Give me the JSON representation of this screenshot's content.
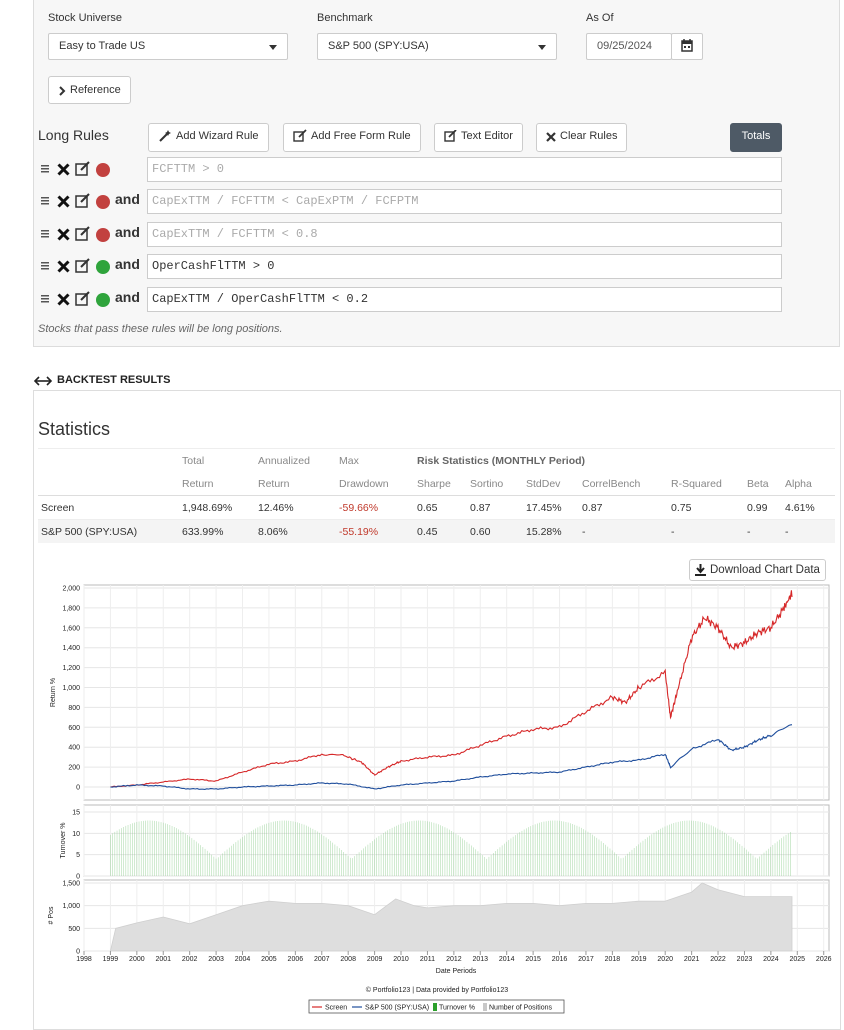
{
  "filters": {
    "universe_label": "Stock Universe",
    "universe_value": "Easy to Trade US",
    "benchmark_label": "Benchmark",
    "benchmark_value": "S&P 500 (SPY:USA)",
    "asof_label": "As Of",
    "asof_value": "09/25/2024"
  },
  "reference_button": "Reference",
  "rules": {
    "title": "Long Rules",
    "buttons": {
      "wizard": "Add Wizard Rule",
      "freeform": "Add Free Form Rule",
      "text_editor": "Text Editor",
      "clear": "Clear Rules",
      "totals": "Totals"
    },
    "connector": "and",
    "items": [
      {
        "expr": "FCFTTM > 0",
        "status": "red",
        "enabled": false
      },
      {
        "expr": "CapExTTM / FCFTTM < CapExPTM / FCFPTM",
        "status": "red",
        "enabled": false
      },
      {
        "expr": "CapExTTM / FCFTTM < 0.8",
        "status": "red",
        "enabled": false
      },
      {
        "expr": "OperCashFlTTM > 0",
        "status": "green",
        "enabled": true
      },
      {
        "expr": "CapExTTM / OperCashFlTTM < 0.2",
        "status": "green",
        "enabled": true
      }
    ],
    "note": "Stocks that pass these rules will be long positions."
  },
  "backtest": {
    "section_title": "BACKTEST RESULTS",
    "stats_title": "Statistics",
    "header1": [
      "",
      "Total",
      "Annualized",
      "Max",
      "Risk Statistics (MONTHLY Period)",
      "",
      "",
      "",
      "",
      "",
      ""
    ],
    "header2": [
      "",
      "Return",
      "Return",
      "Drawdown",
      "Sharpe",
      "Sortino",
      "StdDev",
      "CorrelBench",
      "R-Squared",
      "Beta",
      "Alpha"
    ],
    "rows": [
      [
        "Screen",
        "1,948.69%",
        "12.46%",
        "-59.66%",
        "0.65",
        "0.87",
        "17.45%",
        "0.87",
        "0.75",
        "0.99",
        "4.61%"
      ],
      [
        "S&P 500 (SPY:USA)",
        "633.99%",
        "8.06%",
        "-55.19%",
        "0.45",
        "0.60",
        "15.28%",
        "-",
        "-",
        "-",
        "-"
      ]
    ],
    "download_label": "Download Chart Data"
  },
  "chart_data": {
    "type": "line",
    "x": [
      "1998",
      "1999",
      "2000",
      "2001",
      "2002",
      "2003",
      "2004",
      "2005",
      "2006",
      "2007",
      "2008",
      "2009",
      "2010",
      "2011",
      "2012",
      "2013",
      "2014",
      "2015",
      "2016",
      "2017",
      "2018",
      "2019",
      "2020",
      "2021",
      "2022",
      "2023",
      "2024",
      "2025",
      "2026"
    ],
    "xlabel": "Date Periods",
    "panels": [
      {
        "ylabel": "Return %",
        "ylim": [
          0,
          2000
        ],
        "yticks": [
          "2,000",
          "1,800",
          "1,600",
          "1,400",
          "1,200",
          "1,000",
          "800",
          "600",
          "400",
          "200",
          "0"
        ],
        "series": [
          {
            "name": "Screen",
            "color": "#d62728",
            "points": [
              [
                1999.0,
                0
              ],
              [
                2000.0,
                20
              ],
              [
                2001.0,
                50
              ],
              [
                2002.0,
                80
              ],
              [
                2003.0,
                60
              ],
              [
                2004.0,
                150
              ],
              [
                2005.0,
                230
              ],
              [
                2006.0,
                260
              ],
              [
                2007.0,
                330
              ],
              [
                2007.8,
                320
              ],
              [
                2008.5,
                250
              ],
              [
                2009.0,
                120
              ],
              [
                2009.5,
                200
              ],
              [
                2010.0,
                260
              ],
              [
                2011.0,
                300
              ],
              [
                2012.0,
                320
              ],
              [
                2013.0,
                420
              ],
              [
                2014.0,
                510
              ],
              [
                2015.0,
                580
              ],
              [
                2016.0,
                600
              ],
              [
                2017.0,
                760
              ],
              [
                2018.0,
                900
              ],
              [
                2018.5,
                850
              ],
              [
                2019.0,
                1000
              ],
              [
                2020.0,
                1150
              ],
              [
                2020.2,
                700
              ],
              [
                2020.5,
                1000
              ],
              [
                2021.0,
                1500
              ],
              [
                2021.5,
                1700
              ],
              [
                2022.0,
                1600
              ],
              [
                2022.5,
                1400
              ],
              [
                2023.0,
                1450
              ],
              [
                2023.5,
                1550
              ],
              [
                2024.0,
                1600
              ],
              [
                2024.5,
                1800
              ],
              [
                2024.8,
                1950
              ]
            ]
          },
          {
            "name": "S&P 500 (SPY:USA)",
            "color": "#1f4e9c",
            "points": [
              [
                1999.0,
                0
              ],
              [
                2000.0,
                20
              ],
              [
                2001.0,
                10
              ],
              [
                2002.0,
                -20
              ],
              [
                2003.0,
                -20
              ],
              [
                2004.0,
                0
              ],
              [
                2005.0,
                10
              ],
              [
                2006.0,
                20
              ],
              [
                2007.0,
                40
              ],
              [
                2008.0,
                30
              ],
              [
                2009.0,
                -20
              ],
              [
                2010.0,
                20
              ],
              [
                2011.0,
                40
              ],
              [
                2012.0,
                60
              ],
              [
                2013.0,
                100
              ],
              [
                2014.0,
                130
              ],
              [
                2015.0,
                140
              ],
              [
                2016.0,
                150
              ],
              [
                2017.0,
                200
              ],
              [
                2018.0,
                250
              ],
              [
                2019.0,
                270
              ],
              [
                2020.0,
                330
              ],
              [
                2020.2,
                200
              ],
              [
                2021.0,
                380
              ],
              [
                2022.0,
                480
              ],
              [
                2022.5,
                370
              ],
              [
                2023.0,
                400
              ],
              [
                2023.5,
                470
              ],
              [
                2024.0,
                520
              ],
              [
                2024.8,
                630
              ]
            ]
          }
        ]
      },
      {
        "ylabel": "Turnover %",
        "ylim": [
          0,
          15
        ],
        "yticks": [
          "15",
          "10",
          "5",
          "0"
        ],
        "series": [
          {
            "name": "Turnover %",
            "color": "#2ca02c"
          }
        ]
      },
      {
        "ylabel": "# Pos",
        "ylim": [
          0,
          1500
        ],
        "yticks": [
          "1,500",
          "1,000",
          "500",
          "0"
        ],
        "series": [
          {
            "name": "Number of Positions",
            "color": "#c8c8c8",
            "points": [
              [
                1999.0,
                0
              ],
              [
                1999.2,
                500
              ],
              [
                2000.0,
                620
              ],
              [
                2001.0,
                750
              ],
              [
                2002.0,
                600
              ],
              [
                2003.0,
                800
              ],
              [
                2004.0,
                1000
              ],
              [
                2005.0,
                1100
              ],
              [
                2006.0,
                1050
              ],
              [
                2007.0,
                1050
              ],
              [
                2008.0,
                1000
              ],
              [
                2009.0,
                800
              ],
              [
                2009.8,
                1150
              ],
              [
                2010.5,
                1000
              ],
              [
                2011.0,
                950
              ],
              [
                2012.0,
                1000
              ],
              [
                2013.0,
                1000
              ],
              [
                2014.0,
                1050
              ],
              [
                2015.0,
                1050
              ],
              [
                2016.0,
                1000
              ],
              [
                2017.0,
                1050
              ],
              [
                2018.0,
                1050
              ],
              [
                2019.0,
                1100
              ],
              [
                2020.0,
                1100
              ],
              [
                2021.0,
                1300
              ],
              [
                2021.4,
                1500
              ],
              [
                2022.0,
                1350
              ],
              [
                2023.0,
                1200
              ],
              [
                2024.0,
                1200
              ],
              [
                2024.8,
                1200
              ]
            ]
          }
        ]
      }
    ],
    "credit": "© Portfolio123 | Data provided by Portfolio123",
    "legend": [
      "Screen",
      "S&P 500 (SPY:USA)",
      "Turnover %",
      "Number of Positions"
    ],
    "grid": true
  }
}
